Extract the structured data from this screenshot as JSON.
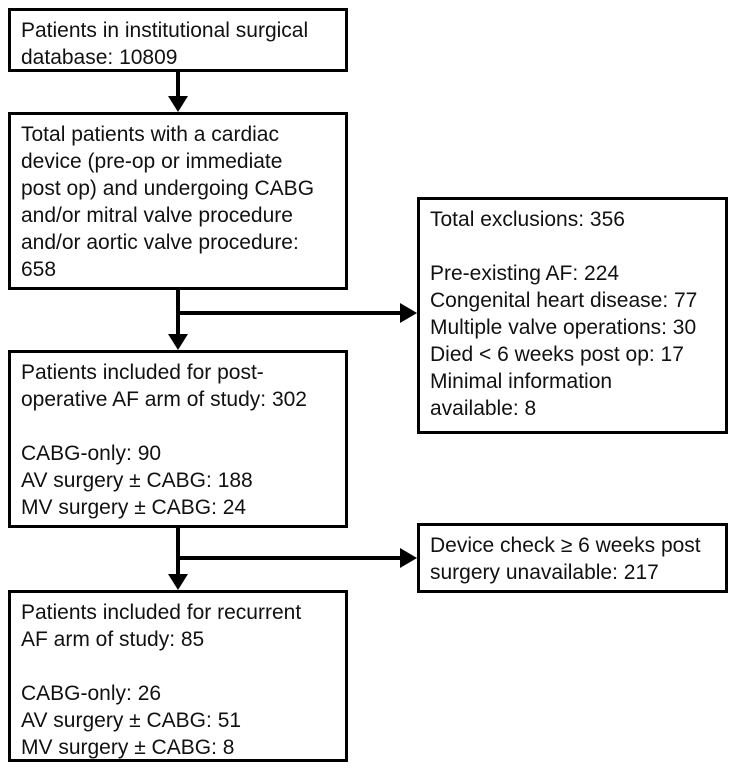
{
  "colors": {
    "border": "#000000",
    "text": "#111111",
    "background": "#ffffff"
  },
  "flowchart": {
    "type": "patient-flow-diagram",
    "main_boxes": [
      {
        "id": "surgical-database",
        "lines": [
          "Patients in institutional surgical",
          "database: 10809"
        ]
      },
      {
        "id": "cardiac-device-patients",
        "lines": [
          "Total patients with a cardiac",
          "device (pre-op or immediate",
          "post op) and undergoing CABG",
          "and/or mitral valve procedure",
          "and/or aortic valve procedure:",
          "658"
        ]
      },
      {
        "id": "postop-af-arm",
        "lines": [
          "Patients included for post-",
          "operative AF arm of study: 302",
          "",
          "CABG-only: 90",
          "AV surgery ± CABG: 188",
          "MV surgery ± CABG: 24"
        ]
      },
      {
        "id": "recurrent-af-arm",
        "lines": [
          "Patients included for recurrent",
          "AF arm of study: 85",
          "",
          "CABG-only: 26",
          "AV surgery ± CABG: 51",
          "MV surgery ± CABG: 8"
        ]
      }
    ],
    "side_boxes": [
      {
        "id": "exclusions",
        "lines": [
          "Total exclusions: 356",
          "",
          "Pre-existing AF: 224",
          "Congenital heart disease: 77",
          "Multiple valve operations: 30",
          "Died < 6 weeks post op: 17",
          "Minimal information",
          "available: 8"
        ]
      },
      {
        "id": "device-check-unavailable",
        "lines": [
          "Device check ≥ 6 weeks post",
          "surgery unavailable: 217"
        ]
      }
    ],
    "key_numbers": {
      "database_total": 10809,
      "cardiac_device_total": 658,
      "total_exclusions": 356,
      "pre_existing_af": 224,
      "congenital_heart_disease": 77,
      "multiple_valve_operations": 30,
      "died_lt_6_weeks_post_op": 17,
      "minimal_information_available": 8,
      "postop_af_arm_total": 302,
      "postop_cabg_only": 90,
      "postop_av_surgery_cabg": 188,
      "postop_mv_surgery_cabg": 24,
      "device_check_unavailable": 217,
      "recurrent_af_arm_total": 85,
      "recurrent_cabg_only": 26,
      "recurrent_av_surgery_cabg": 51,
      "recurrent_mv_surgery_cabg": 8
    }
  }
}
